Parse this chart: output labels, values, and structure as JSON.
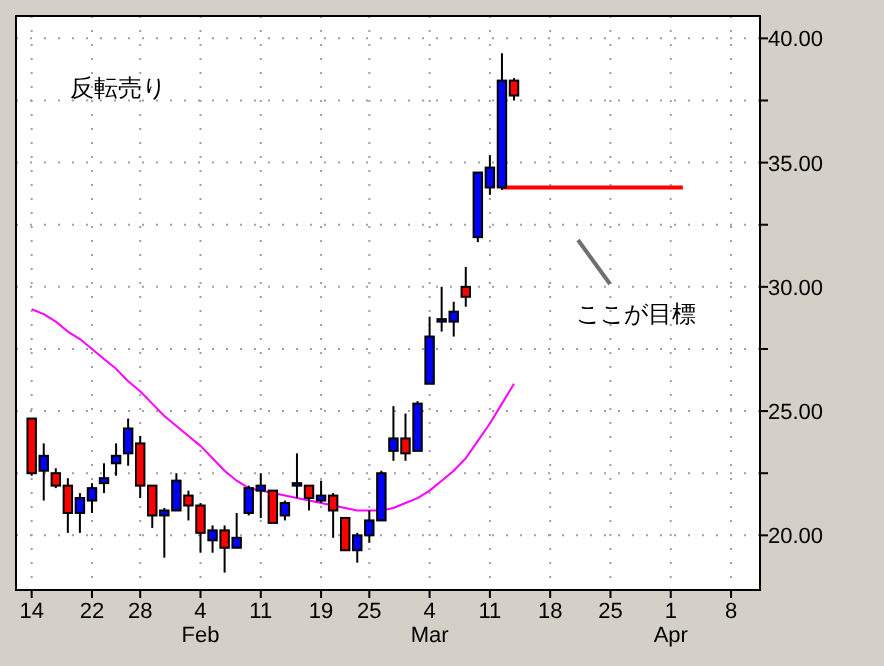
{
  "chart_data": {
    "type": "candlestick",
    "categories": [
      "14",
      null,
      null,
      null,
      null,
      "22",
      null,
      null,
      null,
      "28",
      null,
      null,
      null,
      null,
      "4\nFeb",
      null,
      null,
      null,
      null,
      "11",
      null,
      null,
      null,
      null,
      "19",
      null,
      null,
      null,
      "25",
      null,
      null,
      null,
      null,
      "4\nMar",
      null,
      null,
      null,
      null,
      "11",
      null,
      null,
      null,
      null,
      "18",
      null,
      null,
      null,
      null,
      "25",
      null,
      null,
      null,
      null,
      "1\nApr",
      null,
      null,
      null,
      null,
      "8",
      null,
      null
    ],
    "ohlc": [
      [
        24.7,
        24.7,
        22.4,
        22.5
      ],
      [
        22.6,
        23.7,
        21.4,
        23.2
      ],
      [
        22.5,
        22.7,
        21.9,
        22.0
      ],
      [
        22.0,
        22.3,
        20.1,
        20.9
      ],
      [
        20.9,
        21.7,
        20.1,
        21.5
      ],
      [
        21.4,
        22.1,
        20.9,
        21.9
      ],
      [
        22.1,
        22.9,
        21.7,
        22.3
      ],
      [
        22.9,
        23.7,
        22.4,
        23.2
      ],
      [
        23.3,
        24.7,
        22.8,
        24.3
      ],
      [
        23.7,
        24.0,
        21.5,
        22.0
      ],
      [
        22.0,
        22.0,
        20.3,
        20.8
      ],
      [
        20.8,
        21.1,
        19.1,
        21.0
      ],
      [
        21.0,
        22.5,
        21.0,
        22.2
      ],
      [
        21.6,
        21.8,
        20.6,
        21.2
      ],
      [
        21.2,
        21.3,
        19.3,
        20.1
      ],
      [
        19.8,
        20.4,
        19.3,
        20.2
      ],
      [
        20.2,
        20.4,
        18.5,
        19.5
      ],
      [
        19.5,
        20.9,
        19.5,
        19.9
      ],
      [
        20.9,
        22.0,
        20.8,
        21.9
      ],
      [
        21.8,
        22.5,
        20.7,
        22.0
      ],
      [
        21.8,
        21.8,
        20.5,
        20.5
      ],
      [
        20.8,
        21.4,
        20.6,
        21.3
      ],
      [
        22.0,
        23.3,
        21.5,
        22.1
      ],
      [
        22.0,
        22.0,
        21.0,
        21.5
      ],
      [
        21.4,
        22.2,
        21.3,
        21.6
      ],
      [
        21.6,
        21.7,
        19.9,
        21.0
      ],
      [
        20.7,
        20.7,
        19.4,
        19.4
      ],
      [
        19.4,
        20.1,
        18.9,
        20.0
      ],
      [
        20.0,
        21.0,
        19.7,
        20.6
      ],
      [
        20.6,
        22.6,
        20.6,
        22.5
      ],
      [
        23.4,
        25.2,
        23.0,
        23.9
      ],
      [
        23.9,
        24.9,
        23.0,
        23.3
      ],
      [
        23.4,
        25.4,
        23.4,
        25.3
      ],
      [
        26.1,
        28.8,
        26.1,
        28.0
      ],
      [
        28.6,
        30.0,
        28.2,
        28.7
      ],
      [
        28.6,
        29.4,
        28.0,
        29.0
      ],
      [
        30.0,
        30.8,
        29.2,
        29.6
      ],
      [
        32.0,
        34.6,
        31.8,
        34.6
      ],
      [
        34.0,
        35.3,
        33.7,
        34.8
      ],
      [
        34.0,
        39.4,
        33.9,
        38.3
      ],
      [
        38.3,
        38.4,
        37.5,
        37.7
      ],
      null,
      null,
      null,
      null,
      null,
      null,
      null,
      null,
      null,
      null,
      null,
      null,
      null,
      null,
      null,
      null,
      null,
      null,
      null,
      null
    ],
    "colors": [
      "#ff0000",
      "#0000ff",
      "#ff0000",
      "#ff0000",
      "#0000ff",
      "#0000ff",
      "#0000ff",
      "#0000ff",
      "#0000ff",
      "#ff0000",
      "#ff0000",
      "#0000ff",
      "#0000ff",
      "#ff0000",
      "#ff0000",
      "#0000ff",
      "#ff0000",
      "#0000ff",
      "#0000ff",
      "#0000ff",
      "#ff0000",
      "#0000ff",
      "#0000ff",
      "#ff0000",
      "#0000ff",
      "#ff0000",
      "#ff0000",
      "#0000ff",
      "#0000ff",
      "#0000ff",
      "#0000ff",
      "#ff0000",
      "#0000ff",
      "#0000ff",
      "#0000ff",
      "#0000ff",
      "#ff0000",
      "#0000ff",
      "#0000ff",
      "#0000ff",
      "#ff0000",
      null,
      null,
      null,
      null,
      null,
      null,
      null,
      null,
      null,
      null,
      null,
      null,
      null,
      null,
      null,
      null,
      null,
      null,
      null,
      null
    ],
    "series": [
      {
        "type": "line",
        "color": "#ff00ff",
        "values": [
          29.1,
          28.9,
          28.6,
          28.2,
          27.9,
          27.5,
          27.1,
          26.7,
          26.2,
          25.8,
          25.3,
          24.8,
          24.4,
          24.0,
          23.6,
          23.1,
          22.6,
          22.2,
          21.9,
          21.8,
          21.7,
          21.6,
          21.5,
          21.4,
          21.3,
          21.2,
          21.1,
          21.0,
          21.0,
          21.0,
          21.1,
          21.3,
          21.5,
          21.8,
          22.2,
          22.6,
          23.1,
          23.8,
          24.5,
          25.3,
          26.1,
          null,
          null,
          null,
          null,
          null,
          null,
          null,
          null,
          null,
          null,
          null,
          null,
          null,
          null,
          null,
          null,
          null,
          null,
          null,
          null
        ]
      },
      {
        "type": "line",
        "color": "#ff0000",
        "values": [
          null,
          null,
          null,
          null,
          null,
          null,
          null,
          null,
          null,
          null,
          null,
          null,
          null,
          null,
          null,
          null,
          null,
          null,
          null,
          null,
          null,
          null,
          null,
          null,
          null,
          null,
          null,
          null,
          null,
          null,
          null,
          null,
          null,
          null,
          null,
          null,
          null,
          null,
          null,
          34.0,
          34.0,
          34.0,
          34.0,
          34.0,
          34.0,
          34.0,
          34.0,
          34.0,
          34.0,
          34.0,
          34.0,
          34.0,
          34.0,
          34.0,
          34.0,
          null,
          null,
          null,
          null,
          null,
          null
        ]
      }
    ],
    "ylim": [
      17.8,
      40.9
    ],
    "yticks": [
      {
        "value": 20,
        "label": "20.00"
      },
      {
        "value": 22.5,
        "label": null
      },
      {
        "value": 25,
        "label": "25.00"
      },
      {
        "value": 27.5,
        "label": null
      },
      {
        "value": 30,
        "label": "30.00"
      },
      {
        "value": 32.5,
        "label": null
      },
      {
        "value": 35,
        "label": "35.00"
      },
      {
        "value": 37.5,
        "label": null
      },
      {
        "value": 40,
        "label": "40.00"
      }
    ],
    "grid": true,
    "annotations": [
      "反転売り",
      "ここが目標"
    ]
  }
}
